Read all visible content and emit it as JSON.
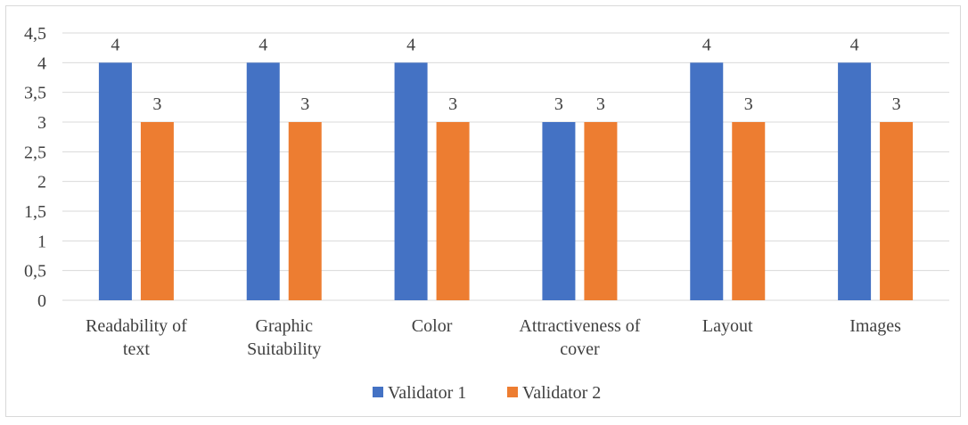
{
  "chart_data": {
    "type": "bar",
    "categories": [
      [
        "Readability of",
        "text"
      ],
      [
        "Graphic",
        "Suitability"
      ],
      [
        "Color"
      ],
      [
        "Attractiveness of",
        "cover"
      ],
      [
        "Layout"
      ],
      [
        "Images"
      ]
    ],
    "series": [
      {
        "name": "Validator 1",
        "color": "#4472c4",
        "values": [
          4,
          4,
          4,
          3,
          4,
          4
        ]
      },
      {
        "name": "Validator 2",
        "color": "#ed7d31",
        "values": [
          3,
          3,
          3,
          3,
          3,
          3
        ]
      }
    ],
    "yticks": [
      "0",
      "0,5",
      "1",
      "1,5",
      "2",
      "2,5",
      "3",
      "3,5",
      "4",
      "4,5"
    ],
    "ylim": [
      0,
      4.5
    ],
    "grid": true,
    "legend": "bottom",
    "data_labels": true
  }
}
